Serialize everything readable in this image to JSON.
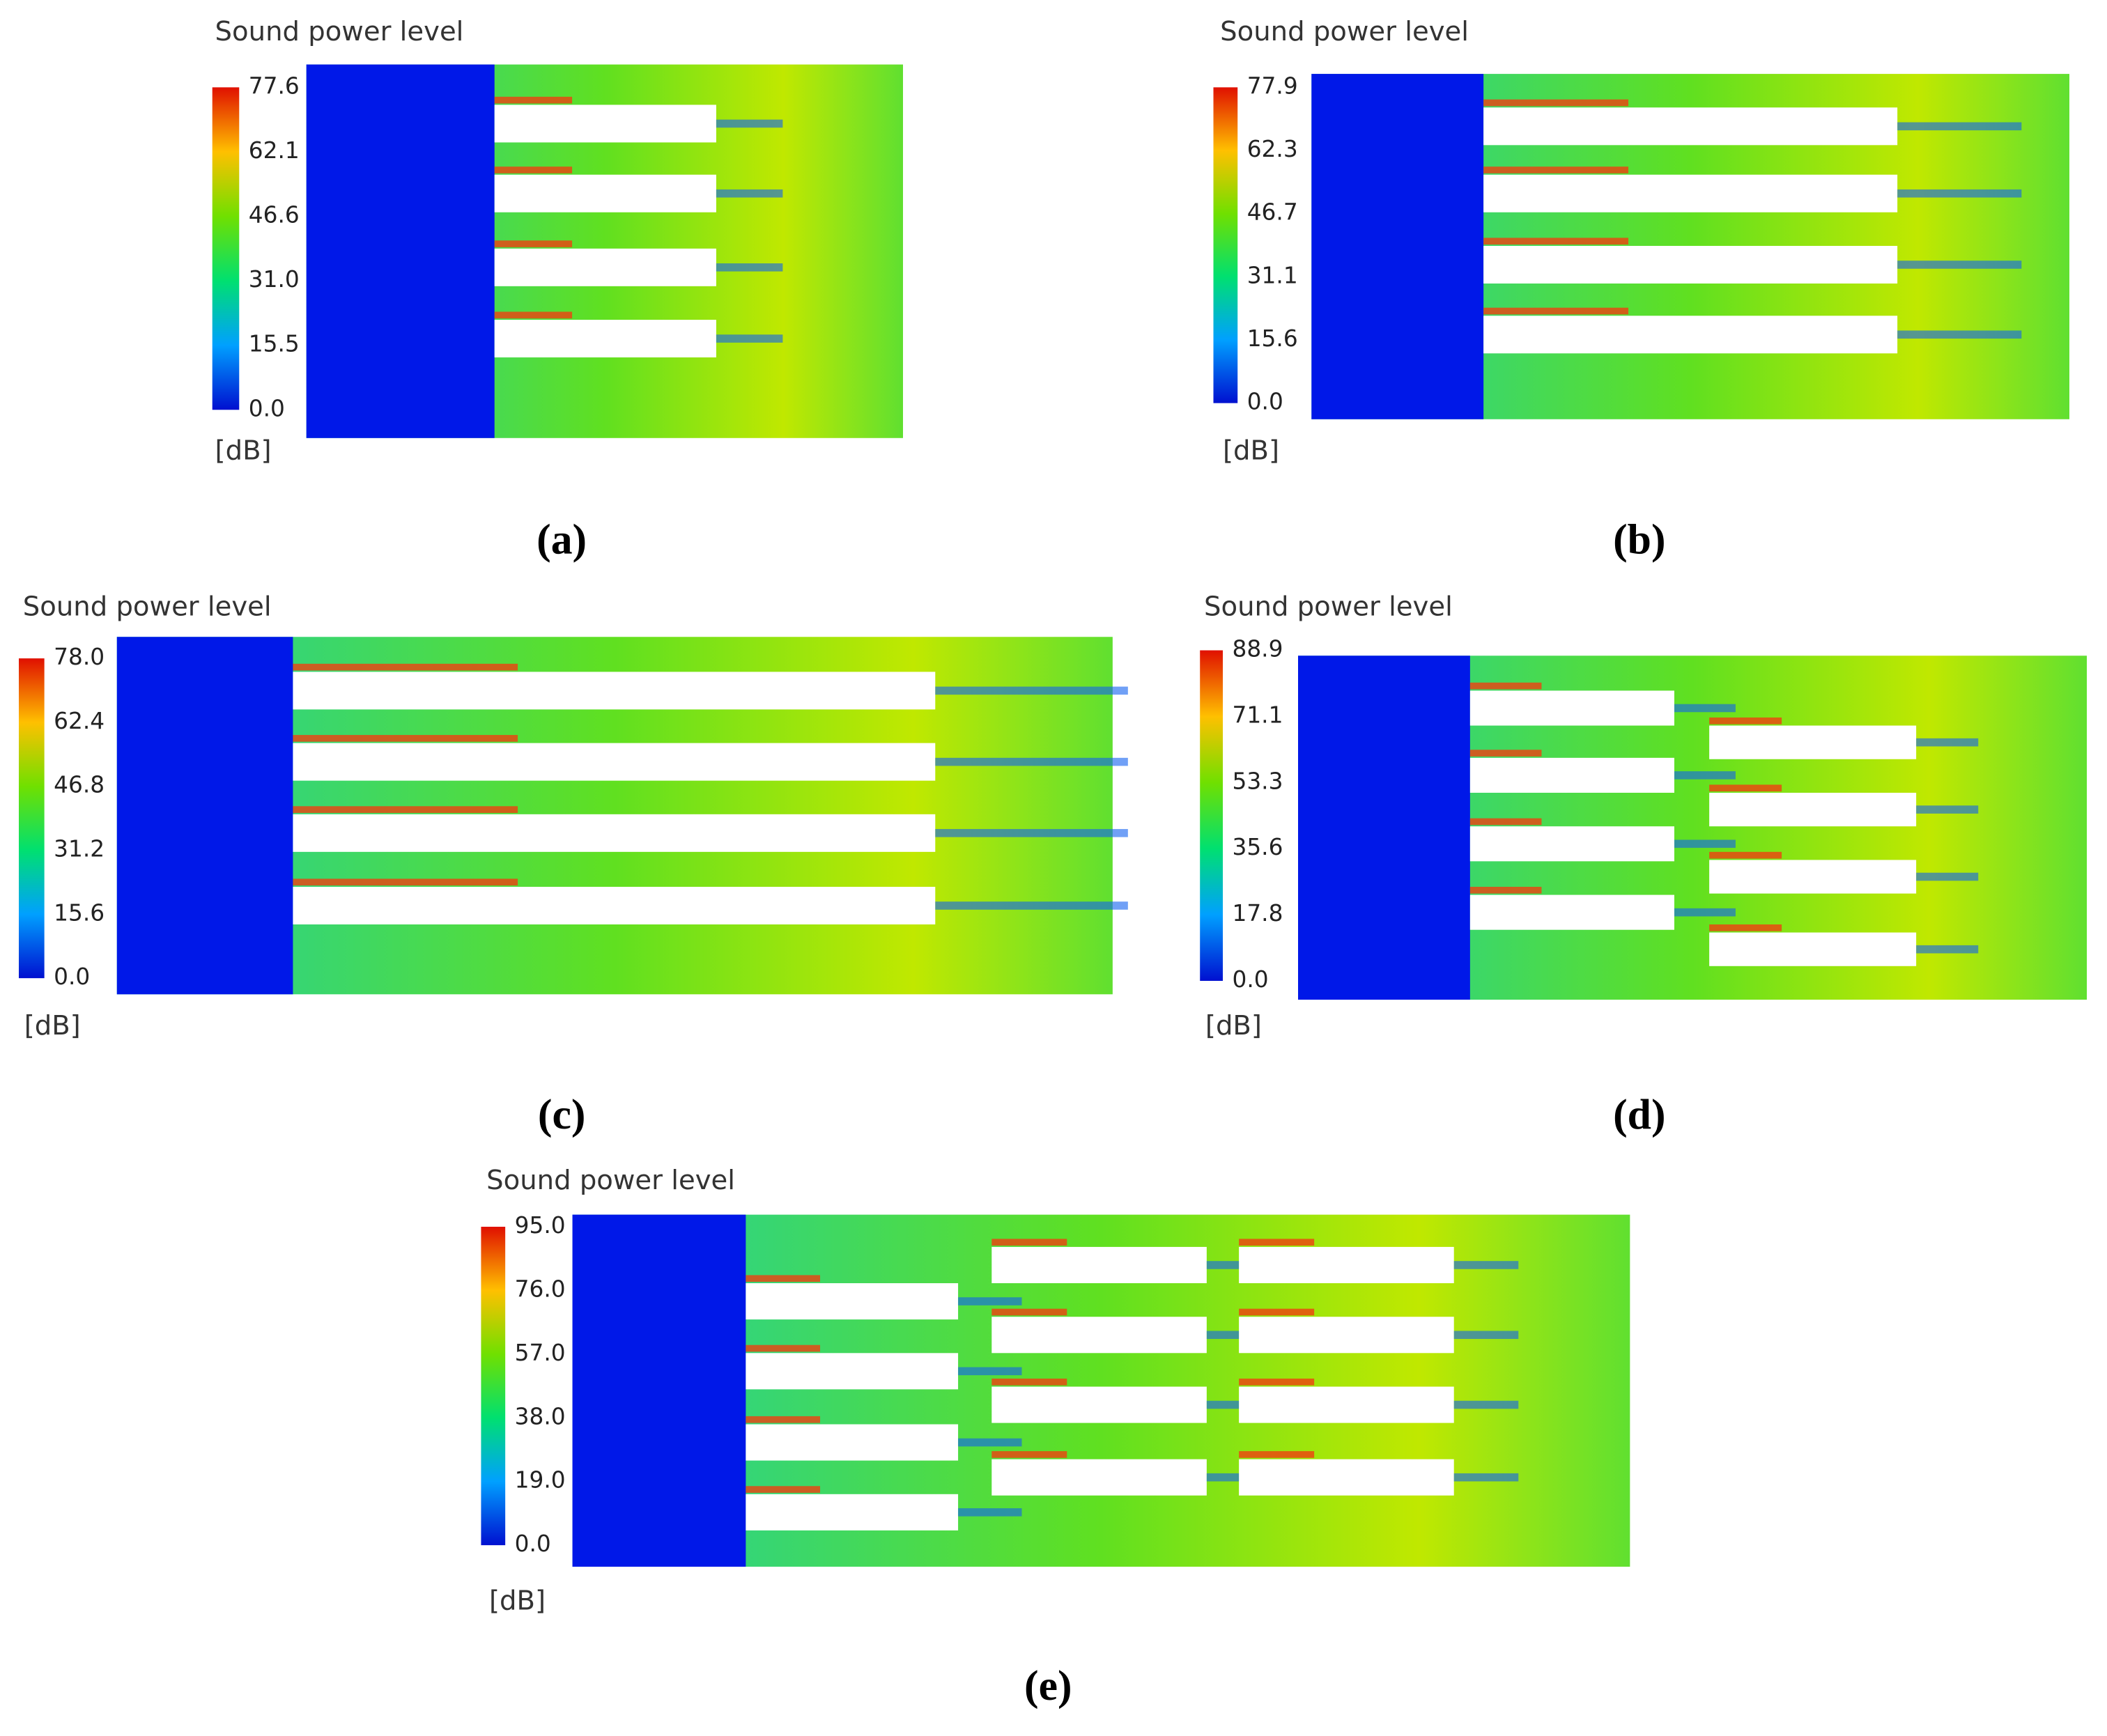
{
  "panels": [
    {
      "title": "Sound power level",
      "ticks": [
        "77.6",
        "62.1",
        "46.6",
        "31.0",
        "15.5",
        "0.0"
      ],
      "unit": "[dB]",
      "label": "(a)"
    },
    {
      "title": "Sound power level",
      "ticks": [
        "77.9",
        "62.3",
        "46.7",
        "31.1",
        "15.6",
        "0.0"
      ],
      "unit": "[dB]",
      "label": "(b)"
    },
    {
      "title": "Sound power level",
      "ticks": [
        "78.0",
        "62.4",
        "46.8",
        "31.2",
        "15.6",
        "0.0"
      ],
      "unit": "[dB]",
      "label": "(c)"
    },
    {
      "title": "Sound power level",
      "ticks": [
        "88.9",
        "71.1",
        "53.3",
        "35.6",
        "17.8",
        "0.0"
      ],
      "unit": "[dB]",
      "label": "(d)"
    },
    {
      "title": "Sound power level",
      "ticks": [
        "95.0",
        "76.0",
        "57.0",
        "38.0",
        "19.0",
        "0.0"
      ],
      "unit": "[dB]",
      "label": "(e)"
    }
  ]
}
